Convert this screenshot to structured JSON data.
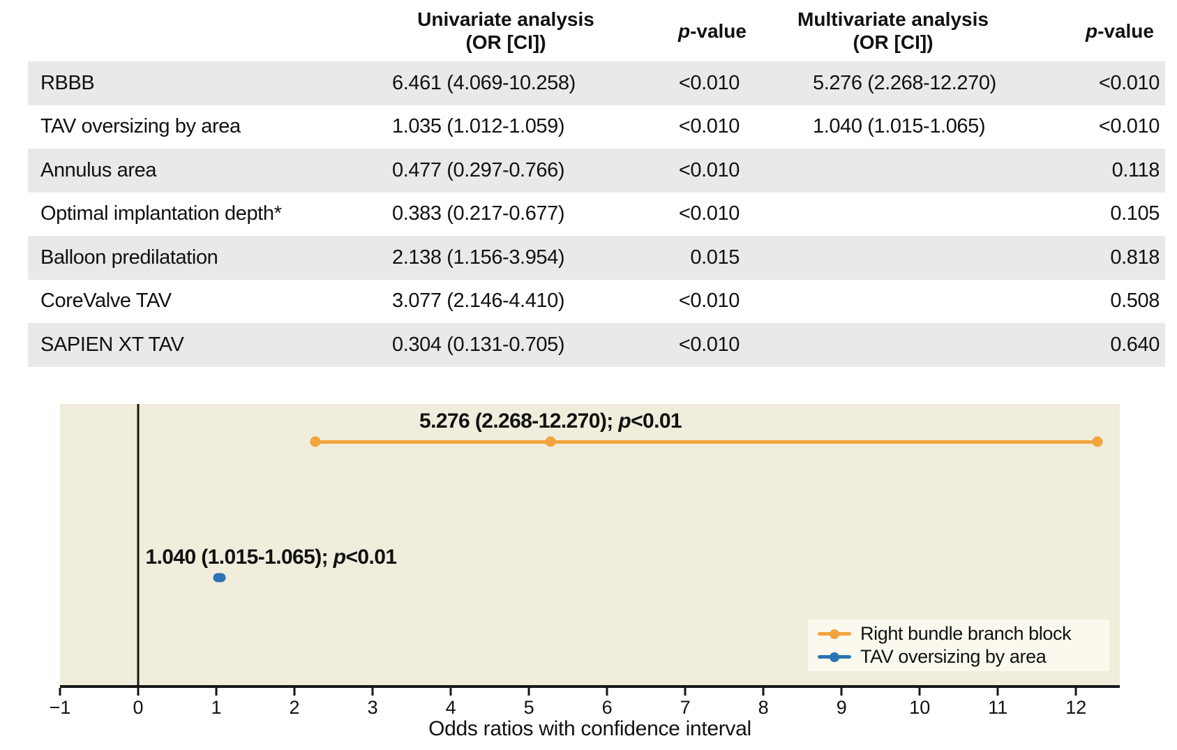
{
  "table": {
    "stripe_color": "#e9e9e9",
    "headers": {
      "univariate_line1": "Univariate analysis",
      "univariate_line2": "(OR [CI])",
      "p1_italic": "p",
      "p1_rest": "-value",
      "multivariate_line1": "Multivariate analysis",
      "multivariate_line2": "(OR [CI])",
      "p2_italic": "p",
      "p2_rest": "-value"
    },
    "rows": [
      {
        "label": "RBBB",
        "uni_or": "6.461 (4.069-10.258)",
        "uni_p": "<0.010",
        "multi_or": "5.276 (2.268-12.270)",
        "multi_p": "<0.010"
      },
      {
        "label": "TAV oversizing by area",
        "uni_or": "1.035 (1.012-1.059)",
        "uni_p": "<0.010",
        "multi_or": "1.040 (1.015-1.065)",
        "multi_p": "<0.010"
      },
      {
        "label": "Annulus area",
        "uni_or": "0.477 (0.297-0.766)",
        "uni_p": "<0.010",
        "multi_or": "",
        "multi_p": "0.118"
      },
      {
        "label": "Optimal implantation depth*",
        "uni_or": "0.383 (0.217-0.677)",
        "uni_p": "<0.010",
        "multi_or": "",
        "multi_p": "0.105"
      },
      {
        "label": "Balloon predilatation",
        "uni_or": "2.138 (1.156-3.954)",
        "uni_p": "0.015",
        "multi_or": "",
        "multi_p": "0.818"
      },
      {
        "label": "CoreValve TAV",
        "uni_or": "3.077 (2.146-4.410)",
        "uni_p": "<0.010",
        "multi_or": "",
        "multi_p": "0.508"
      },
      {
        "label": "SAPIEN XT TAV",
        "uni_or": "0.304 (0.131-0.705)",
        "uni_p": "<0.010",
        "multi_or": "",
        "multi_p": "0.640"
      }
    ]
  },
  "chart_data": {
    "type": "scatter",
    "subtype": "forest-plot-odds-ratios",
    "xlabel": "Odds ratios with confidence interval",
    "ylabel": "",
    "xlim": [
      -1,
      12.56
    ],
    "x_ticks": [
      -1,
      0,
      1,
      2,
      3,
      4,
      5,
      6,
      7,
      8,
      9,
      10,
      11,
      12
    ],
    "x_tick_labels": [
      "−1",
      "0",
      "1",
      "2",
      "3",
      "4",
      "5",
      "6",
      "7",
      "8",
      "9",
      "10",
      "11",
      "12"
    ],
    "grid": false,
    "plot_background": "#f0eddc",
    "legend_background": "#fbf9ee",
    "axis_color": "#161616",
    "zero_line_x": 0,
    "legend_position": "lower right",
    "series": [
      {
        "name": "Right bundle branch block",
        "color": "#F2A43C",
        "odds_ratio": 5.276,
        "ci_low": 2.268,
        "ci_high": 12.27,
        "p_value": "<0.01",
        "annotation_prefix": "5.276 (2.268-12.270); ",
        "annotation_p": "p",
        "annotation_suffix": "<0.01",
        "row_y_frac": 0.134,
        "label_anchor_x": 5.276,
        "marker_size_px": 15
      },
      {
        "name": "TAV oversizing by area",
        "color": "#2C72B4",
        "odds_ratio": 1.04,
        "ci_low": 1.015,
        "ci_high": 1.065,
        "p_value": "<0.01",
        "annotation_prefix": "1.040 (1.015-1.065); ",
        "annotation_p": "p",
        "annotation_suffix": "<0.01",
        "row_y_frac": 0.618,
        "label_anchor_x": 1.7,
        "marker_size_px": 13
      }
    ]
  }
}
